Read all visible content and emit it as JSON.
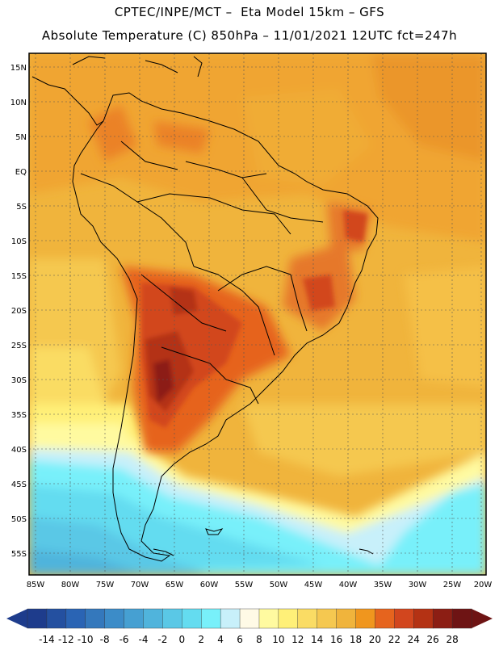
{
  "header": {
    "line1": "CPTEC/INPE/MCT –  Eta Model 15km – GFS",
    "line2": "Absolute Temperature (C) 850hPa – 11/01/2021 12UTC fct=247h"
  },
  "map": {
    "lat_labels": [
      "15N",
      "10N",
      "5N",
      "EQ",
      "5S",
      "10S",
      "15S",
      "20S",
      "25S",
      "30S",
      "35S",
      "40S",
      "45S",
      "50S",
      "55S"
    ],
    "lon_labels": [
      "85W",
      "80W",
      "75W",
      "70W",
      "65W",
      "60W",
      "55W",
      "50W",
      "45W",
      "40W",
      "35W",
      "30W",
      "25W",
      "20W"
    ]
  },
  "colorbar": {
    "labels": [
      "-14",
      "-12",
      "-10",
      "-8",
      "-6",
      "-4",
      "-2",
      "0",
      "2",
      "4",
      "6",
      "8",
      "10",
      "12",
      "14",
      "16",
      "18",
      "20",
      "22",
      "24",
      "26",
      "28"
    ],
    "colors": [
      "#1e3c8c",
      "#2450a0",
      "#2a64b4",
      "#3478bc",
      "#3c8cc8",
      "#46a0d2",
      "#50b4dc",
      "#5ac8e6",
      "#64dcf0",
      "#78f0fa",
      "#c8f0fa",
      "#fffae6",
      "#fffaa0",
      "#fff078",
      "#fadc64",
      "#f5c850",
      "#f0b43c",
      "#f0961e",
      "#e6641e",
      "#d2461e",
      "#b43214",
      "#8c1e14",
      "#6e1414"
    ],
    "left_arrow_color": "#1e3c8c",
    "right_arrow_color": "#6e1414"
  }
}
